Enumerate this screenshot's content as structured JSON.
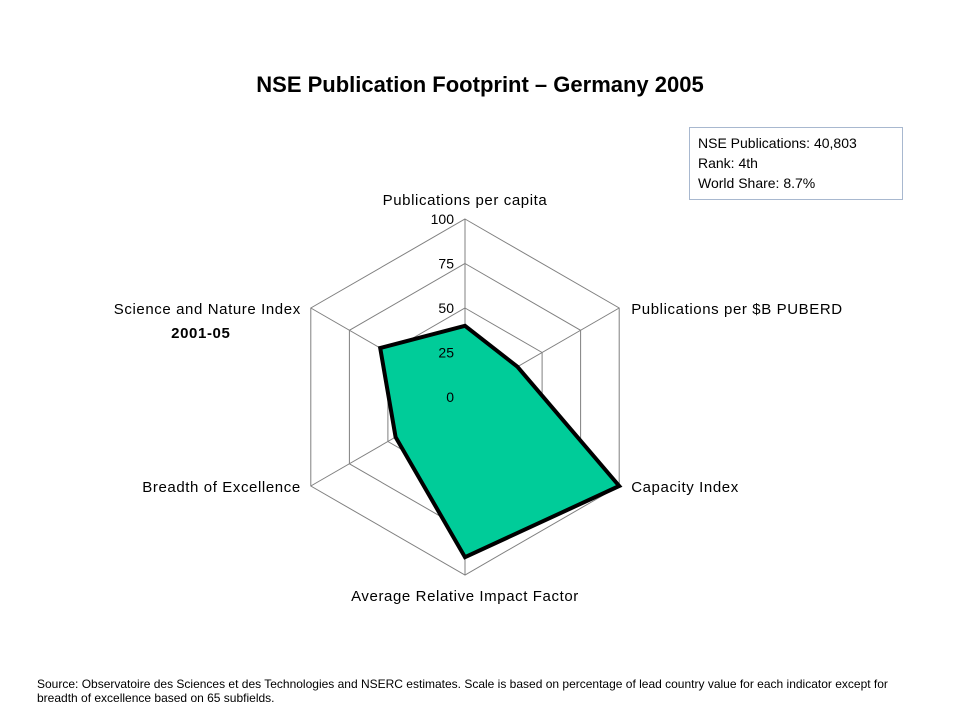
{
  "chart_data": {
    "type": "radar",
    "title": "NSE Publication Footprint – Germany 2005",
    "axes": [
      "Publications per capita",
      "Publications per $B PUBERD",
      "Capacity Index",
      "Average Relative Impact Factor",
      "Breadth of Excellence",
      "Science and Nature Index"
    ],
    "axis_sublabels": [
      "",
      "",
      "",
      "",
      "",
      "2001-05"
    ],
    "ticks": [
      "0",
      "25",
      "50",
      "75",
      "100"
    ],
    "range": [
      0,
      100
    ],
    "series": [
      {
        "values": [
          40,
          34,
          100,
          90,
          45,
          55
        ]
      }
    ],
    "fill_color": "#00cc99",
    "line_color": "#000000",
    "grid_color": "#808080"
  },
  "stats": {
    "publications": "NSE Publications: 40,803",
    "rank": "Rank: 4th",
    "world_share": "World Share: 8.7%"
  },
  "footnote": "Source: Observatoire des Sciences et des Technologies and NSERC estimates. Scale is based on percentage of lead country value for each indicator except for breadth of excellence based on 65 subfields."
}
